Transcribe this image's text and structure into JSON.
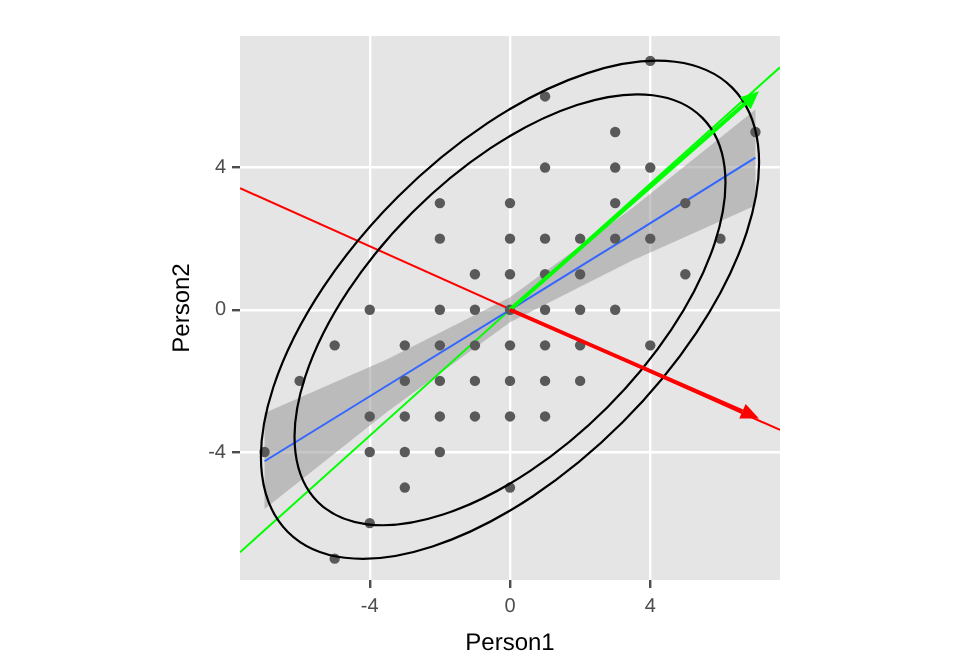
{
  "chart_data": {
    "type": "scatter",
    "xlabel": "Person1",
    "ylabel": "Person2",
    "xlim": [
      -7.7,
      7.7
    ],
    "ylim": [
      -7.6,
      7.7
    ],
    "xticks": [
      -4,
      0,
      4
    ],
    "yticks": [
      -4,
      0,
      4
    ],
    "grid": true,
    "series": [
      {
        "type": "scatter",
        "color": "#595959",
        "x": [
          0,
          -2,
          -2,
          0,
          -1,
          0,
          -4,
          -2,
          -1,
          0,
          -5,
          -3,
          -2,
          -1,
          0,
          -6,
          -3,
          -2,
          -1,
          0,
          -4,
          -3,
          -2,
          -1,
          0,
          -7,
          -4,
          -3,
          -2,
          -3,
          0,
          -4,
          -5,
          4,
          1,
          3,
          7,
          1,
          3,
          4,
          3,
          5,
          1,
          2,
          3,
          4,
          6,
          1,
          2,
          5,
          1,
          2,
          3,
          1,
          2,
          4,
          1,
          2,
          1
        ],
        "values": [
          3,
          3,
          2,
          2,
          1,
          1,
          0,
          0,
          0,
          0,
          -1,
          -1,
          -1,
          -1,
          -1,
          -2,
          -2,
          -2,
          -2,
          -2,
          -3,
          -3,
          -3,
          -3,
          -3,
          -4,
          -4,
          -4,
          -4,
          -5,
          -5,
          -6,
          -7,
          7,
          6,
          5,
          5,
          4,
          4,
          4,
          3,
          3,
          2,
          2,
          2,
          2,
          2,
          1,
          1,
          1,
          0,
          0,
          0,
          -1,
          -1,
          -1,
          -2,
          -2,
          -3
        ]
      },
      {
        "type": "line",
        "color": "#3366ff",
        "x": [
          -7,
          -3.5,
          0,
          3.5,
          7
        ],
        "values": [
          -4.26,
          -2.13,
          0,
          2.13,
          4.28
        ],
        "lower": [
          -5.6,
          -2.87,
          -0.35,
          1.39,
          2.93
        ],
        "upper": [
          -2.9,
          -1.39,
          0.35,
          2.87,
          5.63
        ]
      },
      {
        "type": "line",
        "color": "#00ff00",
        "x": [
          -7.7,
          7.7
        ],
        "values": [
          -6.82,
          6.82
        ]
      },
      {
        "type": "line",
        "color": "#ff0000",
        "x": [
          -7.7,
          7.7
        ],
        "values": [
          3.42,
          -3.38
        ]
      }
    ]
  }
}
